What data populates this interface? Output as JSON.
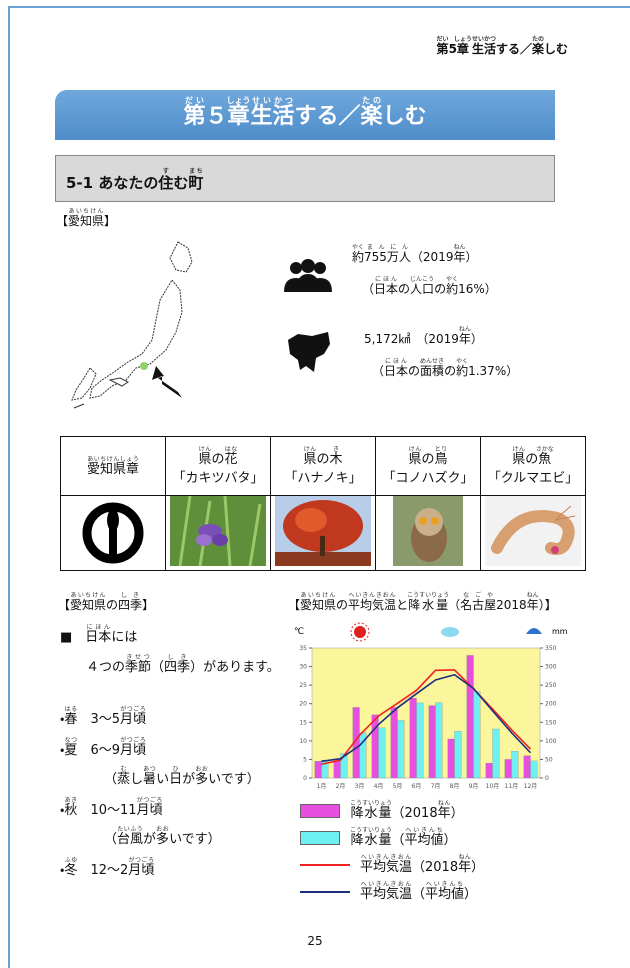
{
  "header": {
    "running_title": [
      {
        "base": "第",
        "rt": "だい"
      },
      "5",
      {
        "base": "章",
        "rt": "しょう"
      },
      {
        "base": "生活",
        "rt": "せいかつ"
      },
      "する／",
      {
        "base": "楽",
        "rt": "たの"
      },
      "しむ"
    ]
  },
  "chapter": {
    "title": [
      {
        "base": "第",
        "rt": "だい"
      },
      "５",
      {
        "base": "章",
        "rt": "しょう"
      },
      {
        "base": "生活",
        "rt": "せいかつ"
      },
      "する／",
      {
        "base": "楽",
        "rt": "たの"
      },
      "しむ"
    ]
  },
  "section": {
    "title": [
      "5-1 あなたの",
      {
        "base": "住",
        "rt": "す"
      },
      "む",
      {
        "base": "町",
        "rt": "まち"
      }
    ]
  },
  "prefecture": {
    "label": [
      "【",
      {
        "base": "愛知県",
        "rt": "あいちけん"
      },
      "】"
    ],
    "population": [
      {
        "base": "約",
        "rt": "やく"
      },
      {
        "base": "755万人",
        "rt": "まんにん"
      },
      "（2019",
      {
        "base": "年",
        "rt": "ねん"
      },
      "）"
    ],
    "population_share": [
      "（",
      {
        "base": "日本",
        "rt": "にほん"
      },
      "の",
      {
        "base": "人口",
        "rt": "じんこう"
      },
      "の",
      {
        "base": "約",
        "rt": "やく"
      },
      "16%）"
    ],
    "area": [
      "5,172㎢　（2019",
      {
        "base": "年",
        "rt": "ねん"
      },
      "）"
    ],
    "area_share": [
      "（",
      {
        "base": "日本",
        "rt": "にほん"
      },
      "の",
      {
        "base": "面積",
        "rt": "めんせき"
      },
      "の",
      {
        "base": "約",
        "rt": "やく"
      },
      "1.37%）"
    ]
  },
  "symbols": [
    {
      "header": [
        {
          "base": "愛知県章",
          "rt": "あいちけんしょう"
        }
      ]
    },
    {
      "header": [
        {
          "base": "県",
          "rt": "けん"
        },
        "の",
        {
          "base": "花",
          "rt": "はな"
        }
      ],
      "name": "「カキツバタ」"
    },
    {
      "header": [
        {
          "base": "県",
          "rt": "けん"
        },
        "の",
        {
          "base": "木",
          "rt": "き"
        }
      ],
      "name": "「ハナノキ」"
    },
    {
      "header": [
        {
          "base": "県",
          "rt": "けん"
        },
        "の",
        {
          "base": "鳥",
          "rt": "とり"
        }
      ],
      "name": "「コノハズク」"
    },
    {
      "header": [
        {
          "base": "県",
          "rt": "けん"
        },
        "の",
        {
          "base": "魚",
          "rt": "さかな"
        }
      ],
      "name": "「クルマエビ」"
    }
  ],
  "seasons": {
    "title": [
      "【",
      {
        "base": "愛知県",
        "rt": "あいちけん"
      },
      "の",
      {
        "base": "四季",
        "rt": "しき"
      },
      "】"
    ],
    "intro_1": [
      "■　",
      {
        "base": "日本",
        "rt": "にほん"
      },
      "には"
    ],
    "intro_2": [
      "４つの",
      {
        "base": "季節",
        "rt": "きせつ"
      },
      "（",
      {
        "base": "四季",
        "rt": "しき"
      },
      "）があります。"
    ],
    "items": [
      [
        "・",
        {
          "base": "春",
          "rt": "はる"
        },
        "　3～5",
        {
          "base": "月頃",
          "rt": "がつごろ"
        }
      ],
      [
        "・",
        {
          "base": "夏",
          "rt": "なつ"
        },
        "　6～9",
        {
          "base": "月頃",
          "rt": "がつごろ"
        }
      ],
      [
        "（",
        {
          "base": "蒸",
          "rt": "む"
        },
        "し",
        {
          "base": "暑",
          "rt": "あつ"
        },
        "い",
        {
          "base": "日",
          "rt": "ひ"
        },
        "が",
        {
          "base": "多",
          "rt": "おお"
        },
        "いです）"
      ],
      [
        "・",
        {
          "base": "秋",
          "rt": "あき"
        },
        "　10～11",
        {
          "base": "月頃",
          "rt": "がつごろ"
        }
      ],
      [
        "（",
        {
          "base": "台風",
          "rt": "たいふう"
        },
        "が",
        {
          "base": "多",
          "rt": "おお"
        },
        "いです）"
      ],
      [
        "・",
        {
          "base": "冬",
          "rt": "ふゆ"
        },
        "　12～2",
        {
          "base": "月頃",
          "rt": "がつごろ"
        }
      ]
    ]
  },
  "climate_chart": {
    "type": "bar-line",
    "title": [
      "【",
      {
        "base": "愛知県",
        "rt": "あいちけん"
      },
      "の",
      {
        "base": "平均気温",
        "rt": "へいきんきおん"
      },
      "と",
      {
        "base": "降水量",
        "rt": "こうすいりょう"
      },
      "（",
      {
        "base": "名古屋",
        "rt": "なごや"
      },
      "2018",
      {
        "base": "年",
        "rt": "ねん"
      },
      "）】"
    ],
    "ylabel": "℃",
    "y2label": "mm",
    "categories": [
      "1月",
      "2月",
      "3月",
      "4月",
      "5月",
      "6月",
      "7月",
      "8月",
      "9月",
      "10月",
      "11月",
      "12月"
    ],
    "ylim": [
      0,
      35
    ],
    "yticks": [
      0,
      5,
      10,
      15,
      20,
      25,
      30,
      35
    ],
    "y2lim": [
      0,
      350
    ],
    "y2ticks": [
      0,
      50,
      100,
      150,
      200,
      250,
      300,
      350
    ],
    "series": [
      {
        "name": [
          {
            "base": "降水量",
            "rt": "こうすいりょう"
          },
          "（2018",
          {
            "base": "年",
            "rt": "ねん"
          },
          "）"
        ],
        "type": "bar",
        "axis": "y2",
        "color": "#e64fe0",
        "values": [
          45,
          45,
          190,
          170,
          190,
          215,
          195,
          105,
          330,
          40,
          50,
          60
        ]
      },
      {
        "name": [
          {
            "base": "降水量",
            "rt": "こうすいりょう"
          },
          "（",
          {
            "base": "平均値",
            "rt": "へいきんち"
          },
          "）"
        ],
        "type": "bar",
        "axis": "y2",
        "color": "#6ff0f0",
        "values": [
          48,
          66,
          122,
          135,
          155,
          202,
          203,
          126,
          232,
          132,
          72,
          46
        ]
      },
      {
        "name": [
          {
            "base": "平均気温",
            "rt": "へいきんきおん"
          },
          "（2018",
          {
            "base": "年",
            "rt": "ねん"
          },
          "）"
        ],
        "type": "line",
        "axis": "y",
        "color": "#ee2222",
        "values": [
          3.7,
          4.8,
          11.5,
          16.7,
          20.1,
          23.6,
          29.0,
          29.1,
          24.0,
          18.6,
          13.0,
          7.8
        ]
      },
      {
        "name": [
          {
            "base": "平均気温",
            "rt": "へいきんきおん"
          },
          "（",
          {
            "base": "平均値",
            "rt": "へいきんち"
          },
          "）"
        ],
        "type": "line",
        "axis": "y",
        "color": "#1f2f80",
        "values": [
          4.5,
          5.2,
          8.7,
          14.4,
          18.9,
          22.7,
          26.4,
          27.8,
          24.1,
          18.1,
          12.2,
          6.8
        ]
      }
    ]
  },
  "page_number": "25"
}
